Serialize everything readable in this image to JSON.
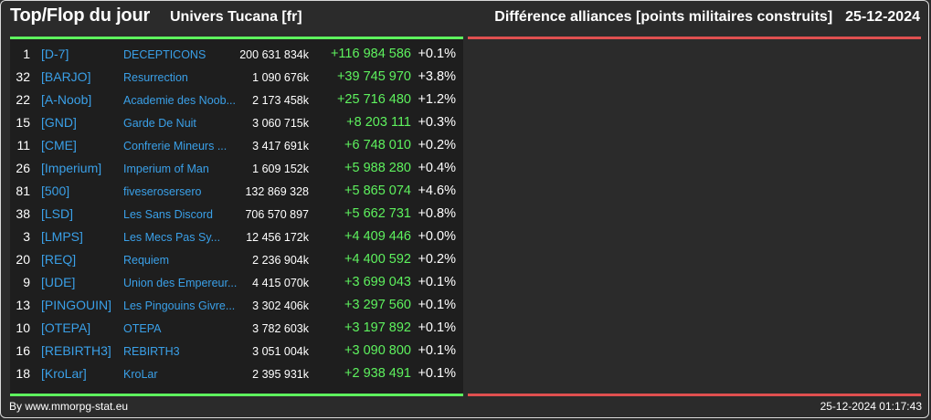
{
  "header": {
    "title": "Top/Flop du jour",
    "universe": "Univers Tucana [fr]",
    "description": "Différence alliances [points militaires construits]",
    "date": "25-12-2024"
  },
  "rows": [
    {
      "rank": "1",
      "tag": "[D-7]",
      "name": "DECEPTICONS",
      "points": "200 631 834k",
      "delta": "+116 984 586",
      "pct": "+0.1%"
    },
    {
      "rank": "32",
      "tag": "[BARJO]",
      "name": "Resurrection",
      "points": "1 090 676k",
      "delta": "+39 745 970",
      "pct": "+3.8%"
    },
    {
      "rank": "22",
      "tag": "[A-Noob]",
      "name": "Academie des Noob...",
      "points": "2 173 458k",
      "delta": "+25 716 480",
      "pct": "+1.2%"
    },
    {
      "rank": "15",
      "tag": "[GND]",
      "name": "Garde De Nuit",
      "points": "3 060 715k",
      "delta": "+8 203 111",
      "pct": "+0.3%"
    },
    {
      "rank": "11",
      "tag": "[CME]",
      "name": "Confrerie Mineurs ...",
      "points": "3 417 691k",
      "delta": "+6 748 010",
      "pct": "+0.2%"
    },
    {
      "rank": "26",
      "tag": "[Imperium]",
      "name": "Imperium of Man",
      "points": "1 609 152k",
      "delta": "+5 988 280",
      "pct": "+0.4%"
    },
    {
      "rank": "81",
      "tag": "[500]",
      "name": "fiveserosersero",
      "points": "132 869 328",
      "delta": "+5 865 074",
      "pct": "+4.6%"
    },
    {
      "rank": "38",
      "tag": "[LSD]",
      "name": "Les Sans Discord",
      "points": "706 570 897",
      "delta": "+5 662 731",
      "pct": "+0.8%"
    },
    {
      "rank": "3",
      "tag": "[LMPS]",
      "name": "Les Mecs Pas Sy...",
      "points": "12 456 172k",
      "delta": "+4 409 446",
      "pct": "+0.0%"
    },
    {
      "rank": "20",
      "tag": "[REQ]",
      "name": "Requiem",
      "points": "2 236 904k",
      "delta": "+4 400 592",
      "pct": "+0.2%"
    },
    {
      "rank": "9",
      "tag": "[UDE]",
      "name": "Union des Empereur...",
      "points": "4 415 070k",
      "delta": "+3 699 043",
      "pct": "+0.1%"
    },
    {
      "rank": "13",
      "tag": "[PINGOUIN]",
      "name": "Les Pingouins Givre...",
      "points": "3 302 406k",
      "delta": "+3 297 560",
      "pct": "+0.1%"
    },
    {
      "rank": "10",
      "tag": "[OTEPA]",
      "name": "OTEPA",
      "points": "3 782 603k",
      "delta": "+3 197 892",
      "pct": "+0.1%"
    },
    {
      "rank": "16",
      "tag": "[REBIRTH3]",
      "name": "REBIRTH3",
      "points": "3 051 004k",
      "delta": "+3 090 800",
      "pct": "+0.1%"
    },
    {
      "rank": "18",
      "tag": "[KroLar]",
      "name": "KroLar",
      "points": "2 395 931k",
      "delta": "+2 938 491",
      "pct": "+0.1%"
    }
  ],
  "footer": {
    "credit": "By www.mmorpg-stat.eu",
    "timestamp": "25-12-2024 01:17:43"
  },
  "colors": {
    "background": "#2b2b2b",
    "panel": "#1e1e1e",
    "positive": "#5ef25e",
    "negative": "#e05050",
    "link": "#3aa0e8"
  }
}
